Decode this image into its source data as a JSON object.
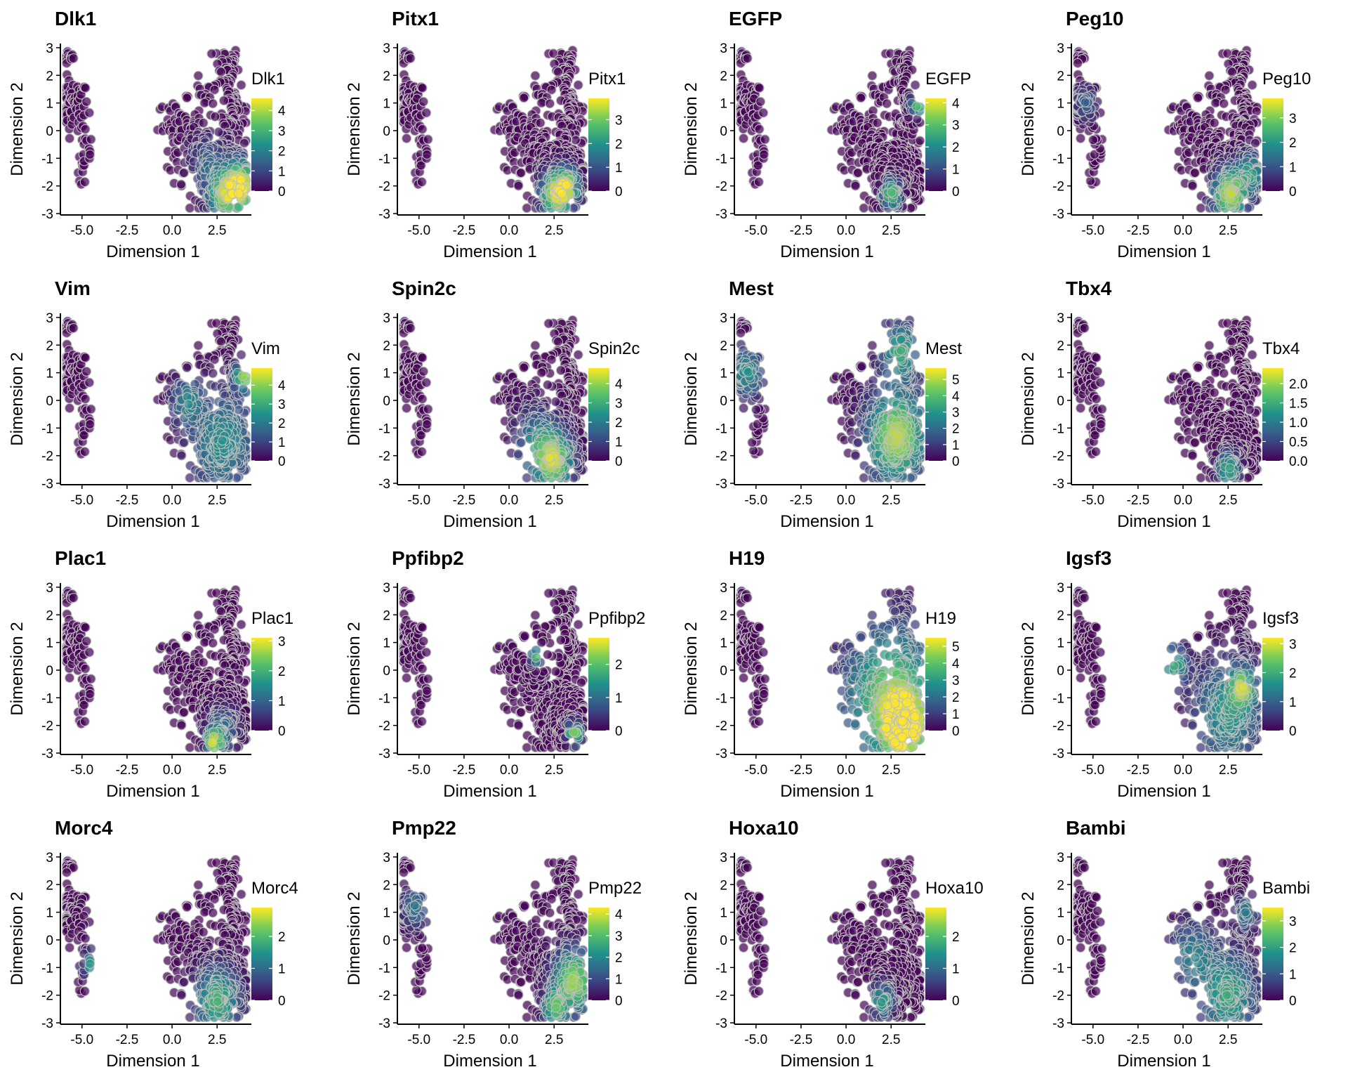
{
  "chart_data": {
    "type": "scatter",
    "xlabel": "Dimension 1",
    "ylabel": "Dimension 2",
    "xlim": [
      -6.2,
      4.4
    ],
    "ylim": [
      -3.05,
      3.15
    ],
    "xticks": [
      "-5.0",
      "-2.5",
      "0.0",
      "2.5"
    ],
    "xtick_values": [
      -5.0,
      -2.5,
      0.0,
      2.5
    ],
    "yticks": [
      "-3",
      "-2",
      "-1",
      "0",
      "1",
      "2",
      "3"
    ],
    "ytick_values": [
      -3,
      -2,
      -1,
      0,
      1,
      2,
      3
    ],
    "colormap": [
      "#440154",
      "#3b528b",
      "#21908c",
      "#5dc863",
      "#fde725"
    ],
    "panels": [
      {
        "gene": "Dlk1",
        "legend_title": "Dlk1",
        "vmax": 4.6,
        "legend_ticks": [
          "0",
          "1",
          "2",
          "3",
          "4"
        ],
        "legend_values": [
          0,
          1,
          2,
          3,
          4
        ],
        "hotspots": [
          {
            "x": 3.8,
            "y": -2.0,
            "r": 0.9,
            "s": 1.0
          },
          {
            "x": 2.8,
            "y": -2.4,
            "r": 0.8,
            "s": 0.6
          },
          {
            "x": 2.0,
            "y": -1.2,
            "r": 1.0,
            "s": 0.3
          }
        ]
      },
      {
        "gene": "Pitx1",
        "legend_title": "Pitx1",
        "vmax": 3.9,
        "legend_ticks": [
          "0",
          "1",
          "2",
          "3"
        ],
        "legend_values": [
          0,
          1,
          2,
          3
        ],
        "hotspots": [
          {
            "x": 2.6,
            "y": -2.3,
            "r": 0.8,
            "s": 0.9
          },
          {
            "x": 3.3,
            "y": -2.0,
            "r": 0.6,
            "s": 0.6
          }
        ]
      },
      {
        "gene": "EGFP",
        "legend_title": "EGFP",
        "vmax": 4.2,
        "legend_ticks": [
          "0",
          "1",
          "2",
          "3",
          "4"
        ],
        "legend_values": [
          0,
          1,
          2,
          3,
          4
        ],
        "hotspots": [
          {
            "x": 4.0,
            "y": 1.0,
            "r": 0.4,
            "s": 0.8
          },
          {
            "x": 2.5,
            "y": -2.3,
            "r": 0.5,
            "s": 0.7
          }
        ]
      },
      {
        "gene": "Peg10",
        "legend_title": "Peg10",
        "vmax": 3.8,
        "legend_ticks": [
          "0",
          "1",
          "2",
          "3"
        ],
        "legend_values": [
          0,
          1,
          2,
          3
        ],
        "hotspots": [
          {
            "x": 2.6,
            "y": -2.3,
            "r": 0.9,
            "s": 0.9
          },
          {
            "x": 3.8,
            "y": -1.5,
            "r": 0.7,
            "s": 0.5
          },
          {
            "x": -5.4,
            "y": 1.0,
            "r": 0.6,
            "s": 0.3
          }
        ]
      },
      {
        "gene": "Vim",
        "legend_title": "Vim",
        "vmax": 4.9,
        "legend_ticks": [
          "0",
          "1",
          "2",
          "3",
          "4"
        ],
        "legend_values": [
          0,
          1,
          2,
          3,
          4
        ],
        "hotspots": [
          {
            "x": 2.8,
            "y": -1.5,
            "r": 1.8,
            "s": 0.5
          },
          {
            "x": 4.0,
            "y": 0.9,
            "r": 0.5,
            "s": 0.8
          },
          {
            "x": 0.8,
            "y": 0.0,
            "r": 0.8,
            "s": 0.4
          }
        ]
      },
      {
        "gene": "Spin2c",
        "legend_title": "Spin2c",
        "vmax": 4.8,
        "legend_ticks": [
          "0",
          "1",
          "2",
          "3",
          "4"
        ],
        "legend_values": [
          0,
          1,
          2,
          3,
          4
        ],
        "hotspots": [
          {
            "x": 2.5,
            "y": -2.2,
            "r": 1.0,
            "s": 0.8
          },
          {
            "x": 1.5,
            "y": -1.5,
            "r": 1.2,
            "s": 0.4
          }
        ]
      },
      {
        "gene": "Mest",
        "legend_title": "Mest",
        "vmax": 5.7,
        "legend_ticks": [
          "0",
          "1",
          "2",
          "3",
          "4",
          "5"
        ],
        "legend_values": [
          0,
          1,
          2,
          3,
          4,
          5
        ],
        "hotspots": [
          {
            "x": 2.8,
            "y": -1.3,
            "r": 1.6,
            "s": 0.9
          },
          {
            "x": 3.0,
            "y": 1.8,
            "r": 1.0,
            "s": 0.6
          },
          {
            "x": -5.5,
            "y": 1.0,
            "r": 0.9,
            "s": 0.5
          }
        ]
      },
      {
        "gene": "Tbx4",
        "legend_title": "Tbx4",
        "vmax": 2.4,
        "legend_ticks": [
          "0.0",
          "0.5",
          "1.0",
          "1.5",
          "2.0"
        ],
        "legend_values": [
          0,
          0.5,
          1.0,
          1.5,
          2.0
        ],
        "hotspots": [
          {
            "x": 2.5,
            "y": -2.5,
            "r": 0.6,
            "s": 0.6
          }
        ]
      },
      {
        "gene": "Plac1",
        "legend_title": "Plac1",
        "vmax": 3.1,
        "legend_ticks": [
          "0",
          "1",
          "2",
          "3"
        ],
        "legend_values": [
          0,
          1,
          2,
          3
        ],
        "hotspots": [
          {
            "x": 2.3,
            "y": -2.6,
            "r": 0.4,
            "s": 0.8
          },
          {
            "x": 2.8,
            "y": -2.2,
            "r": 0.8,
            "s": 0.4
          }
        ]
      },
      {
        "gene": "Ppfibp2",
        "legend_title": "Ppfibp2",
        "vmax": 2.8,
        "legend_ticks": [
          "0",
          "1",
          "2"
        ],
        "legend_values": [
          0,
          1,
          2
        ],
        "hotspots": [
          {
            "x": 3.6,
            "y": -2.3,
            "r": 0.4,
            "s": 0.8
          },
          {
            "x": 1.5,
            "y": 0.5,
            "r": 0.3,
            "s": 0.7
          }
        ]
      },
      {
        "gene": "H19",
        "legend_title": "H19",
        "vmax": 5.5,
        "legend_ticks": [
          "0",
          "1",
          "2",
          "3",
          "4",
          "5"
        ],
        "legend_values": [
          0,
          1,
          2,
          3,
          4,
          5
        ],
        "hotspots": [
          {
            "x": 2.5,
            "y": -1.0,
            "r": 2.5,
            "s": 0.8
          },
          {
            "x": 3.2,
            "y": -2.0,
            "r": 1.0,
            "s": 1.0
          }
        ]
      },
      {
        "gene": "Igsf3",
        "legend_title": "Igsf3",
        "vmax": 3.2,
        "legend_ticks": [
          "0",
          "1",
          "2",
          "3"
        ],
        "legend_values": [
          0,
          1,
          2,
          3
        ],
        "hotspots": [
          {
            "x": 2.5,
            "y": -1.5,
            "r": 1.8,
            "s": 0.55
          },
          {
            "x": -0.5,
            "y": 0.2,
            "r": 0.7,
            "s": 0.6
          },
          {
            "x": 3.3,
            "y": -0.6,
            "r": 0.6,
            "s": 0.6
          }
        ]
      },
      {
        "gene": "Morc4",
        "legend_title": "Morc4",
        "vmax": 2.9,
        "legend_ticks": [
          "0",
          "1",
          "2"
        ],
        "legend_values": [
          0,
          1,
          2
        ],
        "hotspots": [
          {
            "x": 2.5,
            "y": -2.2,
            "r": 1.2,
            "s": 0.65
          },
          {
            "x": -4.4,
            "y": -0.9,
            "r": 0.5,
            "s": 0.6
          }
        ]
      },
      {
        "gene": "Pmp22",
        "legend_title": "Pmp22",
        "vmax": 4.3,
        "legend_ticks": [
          "0",
          "1",
          "2",
          "3",
          "4"
        ],
        "legend_values": [
          0,
          1,
          2,
          3,
          4
        ],
        "hotspots": [
          {
            "x": 3.6,
            "y": -1.5,
            "r": 1.1,
            "s": 0.85
          },
          {
            "x": 2.5,
            "y": -2.5,
            "r": 0.6,
            "s": 0.6
          },
          {
            "x": -5.2,
            "y": 1.2,
            "r": 0.7,
            "s": 0.4
          }
        ]
      },
      {
        "gene": "Hoxa10",
        "legend_title": "Hoxa10",
        "vmax": 2.9,
        "legend_ticks": [
          "0",
          "1",
          "2"
        ],
        "legend_values": [
          0,
          1,
          2
        ],
        "hotspots": [
          {
            "x": 2.0,
            "y": -2.2,
            "r": 0.6,
            "s": 0.55
          }
        ]
      },
      {
        "gene": "Bambi",
        "legend_title": "Bambi",
        "vmax": 3.5,
        "legend_ticks": [
          "0",
          "1",
          "2",
          "3"
        ],
        "legend_values": [
          0,
          1,
          2,
          3
        ],
        "hotspots": [
          {
            "x": 2.5,
            "y": -2.0,
            "r": 1.5,
            "s": 0.6
          },
          {
            "x": 0.5,
            "y": -0.5,
            "r": 1.2,
            "s": 0.4
          },
          {
            "x": 3.5,
            "y": 1.0,
            "r": 0.6,
            "s": 0.4
          }
        ]
      }
    ]
  }
}
